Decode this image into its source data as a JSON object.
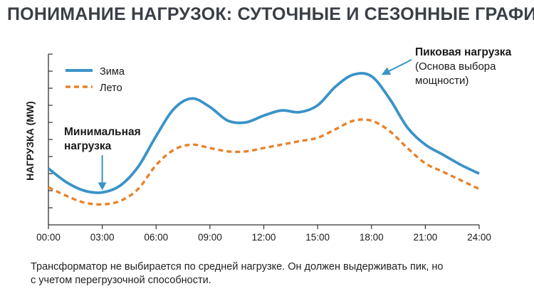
{
  "page": {
    "title": "ПОНИМАНИЕ НАГРУЗОК: СУТОЧНЫЕ И СЕЗОННЫЕ ГРАФИКИ"
  },
  "caption": {
    "line1": "Трансформатор не выбирается по средней нагрузке. Он должен выдерживать пик, но",
    "line2": "с учетом перегрузочной способности."
  },
  "colors": {
    "winter": "#3a93c8",
    "summer": "#e8822b",
    "axis": "#333333",
    "title": "#3a3f47"
  },
  "chart_data": {
    "type": "line",
    "title": "ПОНИМАНИЕ НАГРУЗОК: СУТОЧНЫЕ И СЕЗОННЫЕ ГРАФИКИ",
    "xlabel": "",
    "ylabel": "НАГРУЗКА (MW)",
    "xlim": [
      0,
      24
    ],
    "ylim": [
      0,
      100
    ],
    "x_tick_values": [
      0,
      3,
      6,
      9,
      12,
      15,
      18,
      21,
      24
    ],
    "x_tick_labels": [
      "00:00",
      "03:00",
      "06:00",
      "09:00",
      "12:00",
      "15:00",
      "18:00",
      "21:00",
      "24:00"
    ],
    "y_tick_count": 10,
    "grid": false,
    "legend": {
      "position": "top-left"
    },
    "series": [
      {
        "name": "Зима",
        "style": "solid",
        "x": [
          0,
          1,
          2,
          3,
          4,
          5,
          6,
          7,
          8,
          9,
          10,
          11,
          12,
          13,
          14,
          15,
          16,
          17,
          18,
          19,
          20,
          21,
          22,
          23,
          24
        ],
        "values": [
          33,
          25,
          20,
          19,
          23,
          34,
          52,
          68,
          74,
          69,
          61,
          60,
          64,
          67,
          66,
          70,
          81,
          88,
          87,
          74,
          57,
          47,
          41,
          35,
          30
        ]
      },
      {
        "name": "Лето",
        "style": "dashed",
        "x": [
          0,
          1,
          2,
          3,
          4,
          5,
          6,
          7,
          8,
          9,
          10,
          11,
          12,
          13,
          14,
          15,
          16,
          17,
          18,
          19,
          20,
          21,
          22,
          23,
          24
        ],
        "values": [
          22,
          17,
          13,
          12,
          14,
          21,
          35,
          44,
          47,
          45,
          43,
          43,
          45,
          47,
          49,
          51,
          56,
          61,
          61,
          55,
          45,
          36,
          31,
          26,
          21
        ]
      }
    ],
    "annotations": [
      {
        "id": "min",
        "title": "Минимальная",
        "title2": "нагрузка",
        "x": 3,
        "series": "Зима"
      },
      {
        "id": "peak",
        "title": "Пиковая нагрузка",
        "sub1": "(Основа выбора",
        "sub2": "мощности)",
        "x": 18,
        "series": "Зима"
      }
    ]
  }
}
